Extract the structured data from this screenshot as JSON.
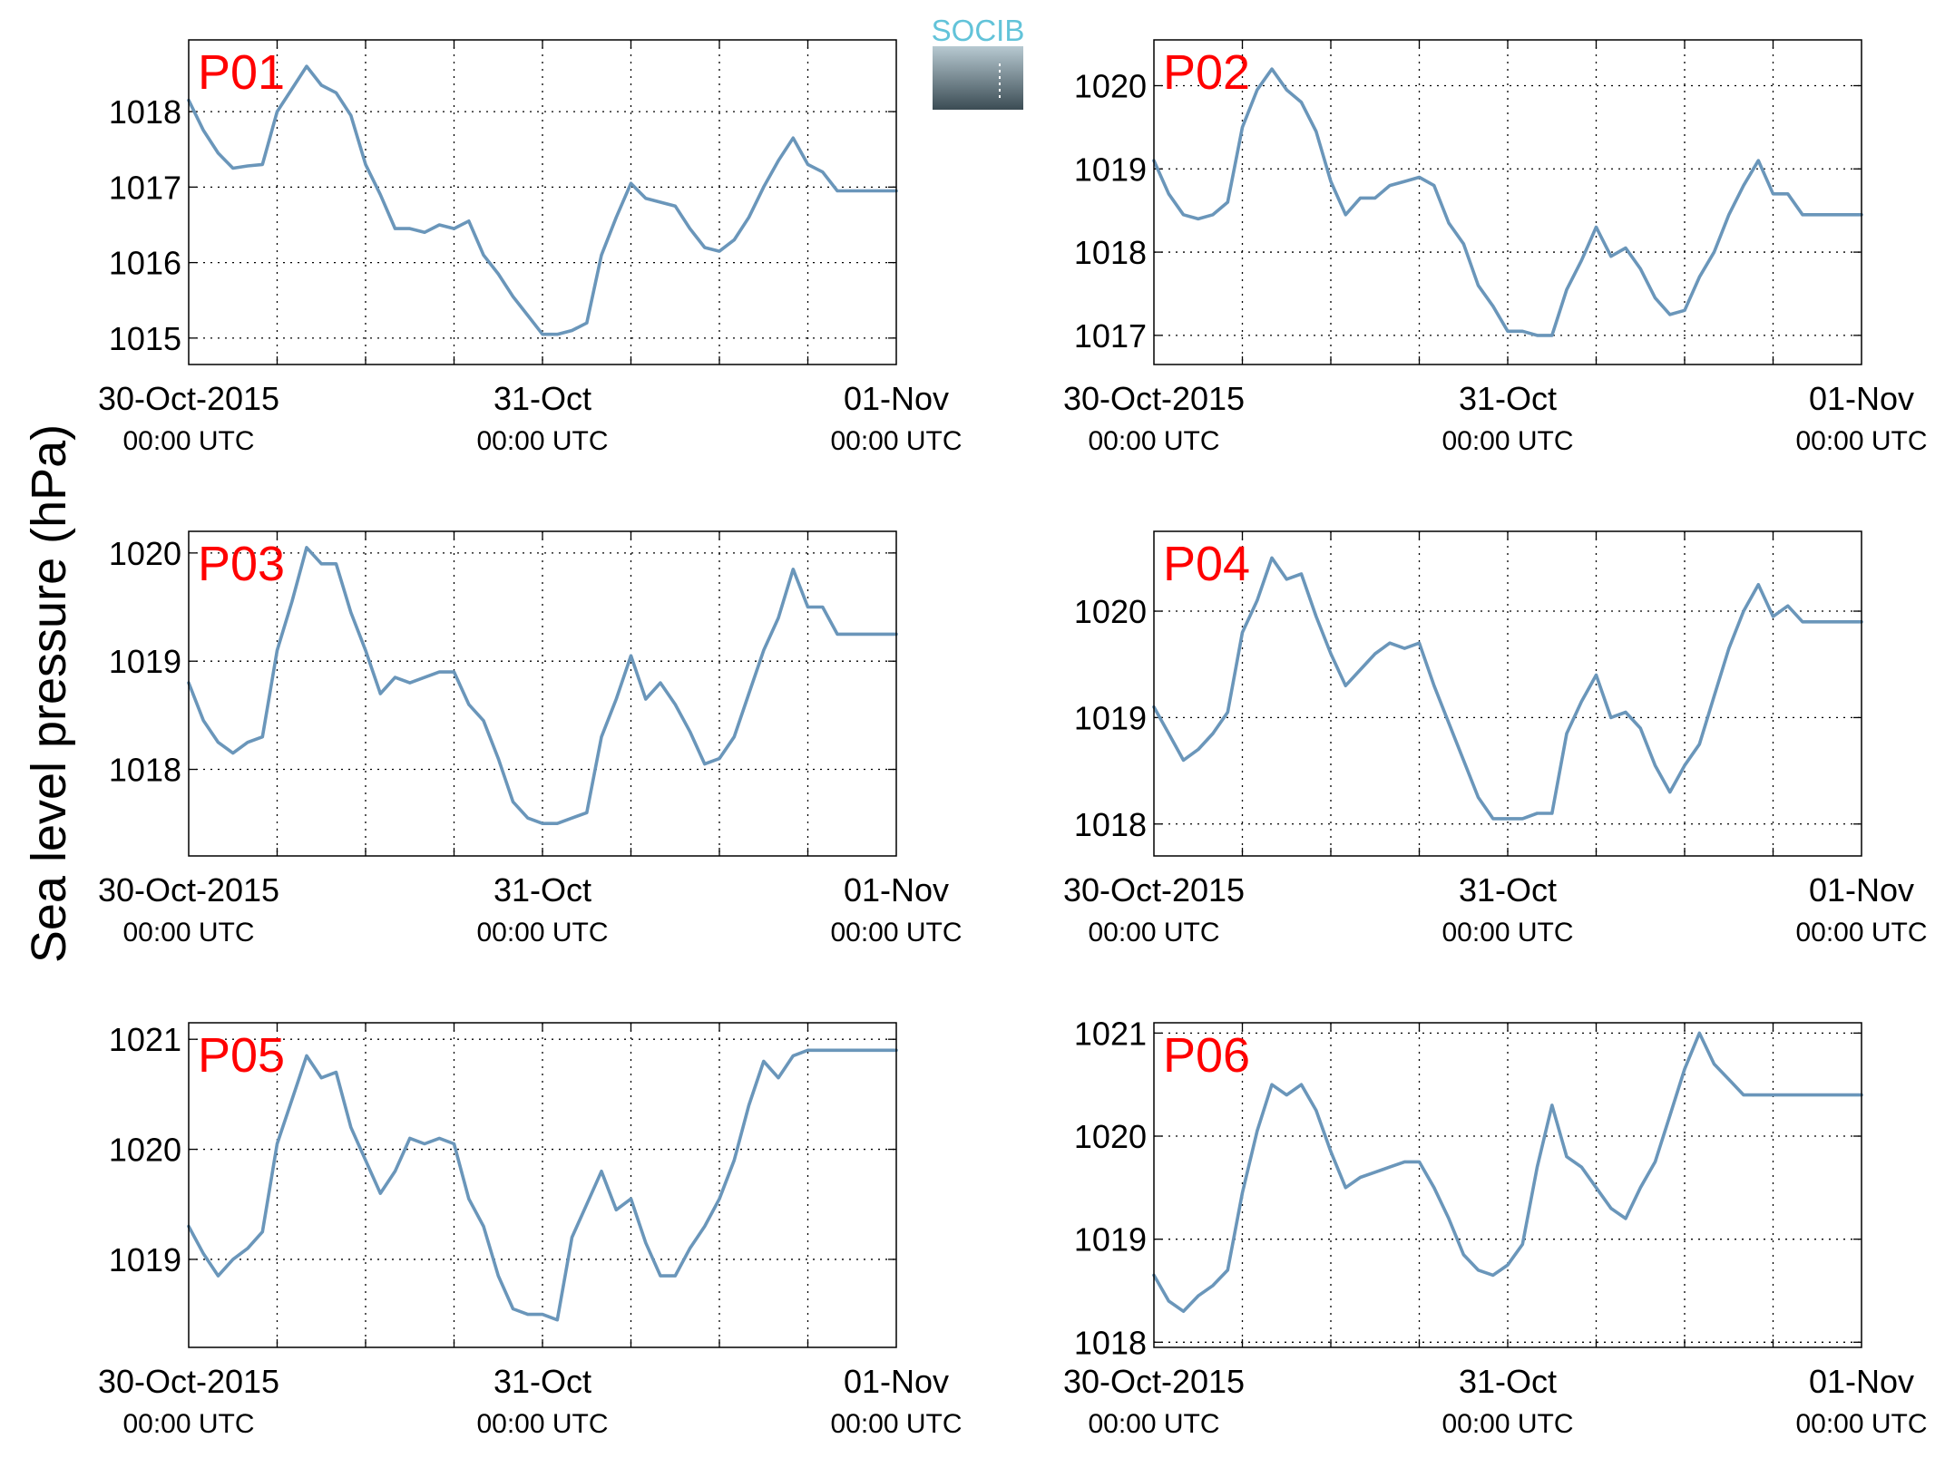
{
  "figure": {
    "ylabel": "Sea level pressure (hPa)",
    "logo_text": "SOCIB"
  },
  "colors": {
    "series": "#6a96ba",
    "panel_label": "#ff0000",
    "logo_text": "#62c3d9",
    "logo_gradient_top": "#b7c9d1",
    "logo_gradient_bottom": "#3b4c54"
  },
  "chart_data": [
    {
      "type": "line",
      "title": "P01",
      "grid": true,
      "xlim": [
        "2015-10-30T00:00",
        "2015-11-01T00:00"
      ],
      "ylim": [
        1014.65,
        1018.95
      ],
      "xticks": [
        {
          "date": "30-Oct-2015",
          "time": "00:00 UTC"
        },
        {
          "date": "31-Oct",
          "time": "00:00 UTC"
        },
        {
          "date": "01-Nov",
          "time": "00:00 UTC"
        }
      ],
      "yticks": [
        1015,
        1016,
        1017,
        1018
      ],
      "series": [
        {
          "x_hours": [
            0,
            1,
            2,
            3,
            4,
            5,
            6,
            7,
            8,
            9,
            10,
            11,
            12,
            13,
            14,
            15,
            16,
            17,
            18,
            19,
            20,
            21,
            22,
            23,
            24,
            25,
            26,
            27,
            28,
            29,
            30,
            31,
            32,
            33,
            34,
            35,
            36,
            37,
            38,
            39,
            40,
            41,
            42,
            43,
            44,
            45,
            46,
            47,
            48
          ],
          "values": [
            1018.15,
            1017.75,
            1017.45,
            1017.25,
            1017.28,
            1017.3,
            1018.0,
            1018.3,
            1018.6,
            1018.35,
            1018.25,
            1017.95,
            1017.3,
            1016.9,
            1016.45,
            1016.45,
            1016.4,
            1016.5,
            1016.45,
            1016.55,
            1016.1,
            1015.85,
            1015.55,
            1015.3,
            1015.05,
            1015.05,
            1015.1,
            1015.2,
            1016.1,
            1016.6,
            1017.05,
            1016.85,
            1016.8,
            1016.75,
            1016.45,
            1016.2,
            1016.15,
            1016.3,
            1016.6,
            1017.0,
            1017.35,
            1017.65,
            1017.3,
            1017.2,
            1016.95,
            1016.95,
            1016.95,
            1016.95,
            1016.95
          ]
        }
      ]
    },
    {
      "type": "line",
      "title": "P02",
      "grid": true,
      "xlim": [
        "2015-10-30T00:00",
        "2015-11-01T00:00"
      ],
      "ylim": [
        1016.65,
        1020.55
      ],
      "xticks": [
        {
          "date": "30-Oct-2015",
          "time": "00:00 UTC"
        },
        {
          "date": "31-Oct",
          "time": "00:00 UTC"
        },
        {
          "date": "01-Nov",
          "time": "00:00 UTC"
        }
      ],
      "yticks": [
        1017,
        1018,
        1019,
        1020
      ],
      "series": [
        {
          "x_hours": [
            0,
            1,
            2,
            3,
            4,
            5,
            6,
            7,
            8,
            9,
            10,
            11,
            12,
            13,
            14,
            15,
            16,
            17,
            18,
            19,
            20,
            21,
            22,
            23,
            24,
            25,
            26,
            27,
            28,
            29,
            30,
            31,
            32,
            33,
            34,
            35,
            36,
            37,
            38,
            39,
            40,
            41,
            42,
            43,
            44,
            45,
            46,
            47,
            48
          ],
          "values": [
            1019.1,
            1018.7,
            1018.45,
            1018.4,
            1018.45,
            1018.6,
            1019.5,
            1019.95,
            1020.2,
            1019.95,
            1019.8,
            1019.45,
            1018.85,
            1018.45,
            1018.65,
            1018.65,
            1018.8,
            1018.85,
            1018.9,
            1018.8,
            1018.35,
            1018.1,
            1017.6,
            1017.35,
            1017.05,
            1017.05,
            1017.0,
            1017.0,
            1017.55,
            1017.9,
            1018.3,
            1017.95,
            1018.05,
            1017.8,
            1017.45,
            1017.25,
            1017.3,
            1017.7,
            1018.0,
            1018.45,
            1018.8,
            1019.1,
            1018.7,
            1018.7,
            1018.45,
            1018.45,
            1018.45,
            1018.45,
            1018.45
          ]
        }
      ]
    },
    {
      "type": "line",
      "title": "P03",
      "grid": true,
      "xlim": [
        "2015-10-30T00:00",
        "2015-11-01T00:00"
      ],
      "ylim": [
        1017.2,
        1020.2
      ],
      "xticks": [
        {
          "date": "30-Oct-2015",
          "time": "00:00 UTC"
        },
        {
          "date": "31-Oct",
          "time": "00:00 UTC"
        },
        {
          "date": "01-Nov",
          "time": "00:00 UTC"
        }
      ],
      "yticks": [
        1018,
        1019,
        1020
      ],
      "series": [
        {
          "x_hours": [
            0,
            1,
            2,
            3,
            4,
            5,
            6,
            7,
            8,
            9,
            10,
            11,
            12,
            13,
            14,
            15,
            16,
            17,
            18,
            19,
            20,
            21,
            22,
            23,
            24,
            25,
            26,
            27,
            28,
            29,
            30,
            31,
            32,
            33,
            34,
            35,
            36,
            37,
            38,
            39,
            40,
            41,
            42,
            43,
            44,
            45,
            46,
            47,
            48
          ],
          "values": [
            1018.8,
            1018.45,
            1018.25,
            1018.15,
            1018.25,
            1018.3,
            1019.1,
            1019.55,
            1020.05,
            1019.9,
            1019.9,
            1019.45,
            1019.1,
            1018.7,
            1018.85,
            1018.8,
            1018.85,
            1018.9,
            1018.9,
            1018.6,
            1018.45,
            1018.1,
            1017.7,
            1017.55,
            1017.5,
            1017.5,
            1017.55,
            1017.6,
            1018.3,
            1018.65,
            1019.05,
            1018.65,
            1018.8,
            1018.6,
            1018.35,
            1018.05,
            1018.1,
            1018.3,
            1018.7,
            1019.1,
            1019.4,
            1019.85,
            1019.5,
            1019.5,
            1019.25,
            1019.25,
            1019.25,
            1019.25,
            1019.25
          ]
        }
      ]
    },
    {
      "type": "line",
      "title": "P04",
      "grid": true,
      "xlim": [
        "2015-10-30T00:00",
        "2015-11-01T00:00"
      ],
      "ylim": [
        1017.7,
        1020.75
      ],
      "xticks": [
        {
          "date": "30-Oct-2015",
          "time": "00:00 UTC"
        },
        {
          "date": "31-Oct",
          "time": "00:00 UTC"
        },
        {
          "date": "01-Nov",
          "time": "00:00 UTC"
        }
      ],
      "yticks": [
        1018,
        1019,
        1020
      ],
      "series": [
        {
          "x_hours": [
            0,
            1,
            2,
            3,
            4,
            5,
            6,
            7,
            8,
            9,
            10,
            11,
            12,
            13,
            14,
            15,
            16,
            17,
            18,
            19,
            20,
            21,
            22,
            23,
            24,
            25,
            26,
            27,
            28,
            29,
            30,
            31,
            32,
            33,
            34,
            35,
            36,
            37,
            38,
            39,
            40,
            41,
            42,
            43,
            44,
            45,
            46,
            47,
            48
          ],
          "values": [
            1019.1,
            1018.85,
            1018.6,
            1018.7,
            1018.85,
            1019.05,
            1019.8,
            1020.1,
            1020.5,
            1020.3,
            1020.35,
            1019.95,
            1019.6,
            1019.3,
            1019.45,
            1019.6,
            1019.7,
            1019.65,
            1019.7,
            1019.3,
            1018.95,
            1018.6,
            1018.25,
            1018.05,
            1018.05,
            1018.05,
            1018.1,
            1018.1,
            1018.85,
            1019.15,
            1019.4,
            1019.0,
            1019.05,
            1018.9,
            1018.55,
            1018.3,
            1018.55,
            1018.75,
            1019.2,
            1019.65,
            1020.0,
            1020.25,
            1019.95,
            1020.05,
            1019.9,
            1019.9,
            1019.9,
            1019.9,
            1019.9
          ]
        }
      ]
    },
    {
      "type": "line",
      "title": "P05",
      "grid": true,
      "xlim": [
        "2015-10-30T00:00",
        "2015-11-01T00:00"
      ],
      "ylim": [
        1018.2,
        1021.15
      ],
      "xticks": [
        {
          "date": "30-Oct-2015",
          "time": "00:00 UTC"
        },
        {
          "date": "31-Oct",
          "time": "00:00 UTC"
        },
        {
          "date": "01-Nov",
          "time": "00:00 UTC"
        }
      ],
      "yticks": [
        1019,
        1020,
        1021
      ],
      "series": [
        {
          "x_hours": [
            0,
            1,
            2,
            3,
            4,
            5,
            6,
            7,
            8,
            9,
            10,
            11,
            12,
            13,
            14,
            15,
            16,
            17,
            18,
            19,
            20,
            21,
            22,
            23,
            24,
            25,
            26,
            27,
            28,
            29,
            30,
            31,
            32,
            33,
            34,
            35,
            36,
            37,
            38,
            39,
            40,
            41,
            42,
            43,
            44,
            45,
            46,
            47,
            48
          ],
          "values": [
            1019.3,
            1019.05,
            1018.85,
            1019.0,
            1019.1,
            1019.25,
            1020.05,
            1020.45,
            1020.85,
            1020.65,
            1020.7,
            1020.2,
            1019.9,
            1019.6,
            1019.8,
            1020.1,
            1020.05,
            1020.1,
            1020.05,
            1019.55,
            1019.3,
            1018.85,
            1018.55,
            1018.5,
            1018.5,
            1018.45,
            1019.2,
            1019.5,
            1019.8,
            1019.45,
            1019.55,
            1019.15,
            1018.85,
            1018.85,
            1019.1,
            1019.3,
            1019.55,
            1019.9,
            1020.4,
            1020.8,
            1020.65,
            1020.85,
            1020.9,
            1020.9,
            1020.9,
            1020.9,
            1020.9,
            1020.9,
            1020.9
          ]
        }
      ]
    },
    {
      "type": "line",
      "title": "P06",
      "grid": true,
      "xlim": [
        "2015-10-30T00:00",
        "2015-11-01T00:00"
      ],
      "ylim": [
        1017.95,
        1021.1
      ],
      "xticks": [
        {
          "date": "30-Oct-2015",
          "time": "00:00 UTC"
        },
        {
          "date": "31-Oct",
          "time": "00:00 UTC"
        },
        {
          "date": "01-Nov",
          "time": "00:00 UTC"
        }
      ],
      "yticks": [
        1018,
        1019,
        1020,
        1021
      ],
      "series": [
        {
          "x_hours": [
            0,
            1,
            2,
            3,
            4,
            5,
            6,
            7,
            8,
            9,
            10,
            11,
            12,
            13,
            14,
            15,
            16,
            17,
            18,
            19,
            20,
            21,
            22,
            23,
            24,
            25,
            26,
            27,
            28,
            29,
            30,
            31,
            32,
            33,
            34,
            35,
            36,
            37,
            38,
            39,
            40,
            41,
            42,
            43,
            44,
            45,
            46,
            47,
            48
          ],
          "values": [
            1018.65,
            1018.4,
            1018.3,
            1018.45,
            1018.55,
            1018.7,
            1019.45,
            1020.05,
            1020.5,
            1020.4,
            1020.5,
            1020.25,
            1019.85,
            1019.5,
            1019.6,
            1019.65,
            1019.7,
            1019.75,
            1019.75,
            1019.5,
            1019.2,
            1018.85,
            1018.7,
            1018.65,
            1018.75,
            1018.95,
            1019.7,
            1020.3,
            1019.8,
            1019.7,
            1019.5,
            1019.3,
            1019.2,
            1019.5,
            1019.75,
            1020.2,
            1020.65,
            1021.0,
            1020.7,
            1020.55,
            1020.4,
            1020.4,
            1020.4,
            1020.4,
            1020.4,
            1020.4,
            1020.4,
            1020.4,
            1020.4
          ]
        }
      ]
    }
  ]
}
